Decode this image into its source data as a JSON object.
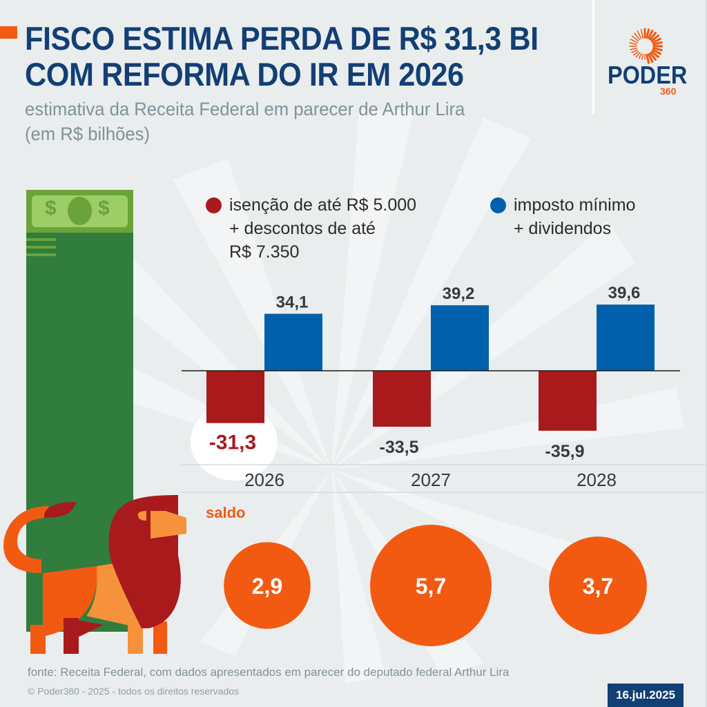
{
  "header": {
    "title_line1": "FISCO ESTIMA PERDA DE R$ 31,3 BI",
    "title_line2": "COM REFORMA DO IR EM 2026",
    "subtitle_line1": "estimativa da Receita Federal em parecer de Arthur Lira",
    "subtitle_line2": "(em R$ bilhões)"
  },
  "logo": {
    "word": "PODER",
    "number": "360",
    "icon": "sunburst-logo-icon"
  },
  "colors": {
    "navy": "#123f74",
    "orange": "#f25a12",
    "red_series": "#a81a1c",
    "blue_series": "#0160ab",
    "background": "#eaedee"
  },
  "legend": [
    {
      "label": "isenção de até R$ 5.000\n+ descontos de até\nR$ 7.350",
      "color": "#a81a1c"
    },
    {
      "label": "imposto mínimo\n+ dividendos",
      "color": "#0160ab"
    }
  ],
  "chart_data": {
    "type": "bar",
    "title": "FISCO ESTIMA PERDA DE R$ 31,3 BI COM REFORMA DO IR EM 2026",
    "subtitle": "estimativa da Receita Federal em parecer de Arthur Lira (em R$ bilhões)",
    "xlabel": "",
    "ylabel": "",
    "categories": [
      "2026",
      "2027",
      "2028"
    ],
    "series": [
      {
        "name": "isenção de até R$ 5.000 + descontos de até R$ 7.350",
        "values": [
          -31.3,
          -33.5,
          -35.9
        ],
        "labels": [
          "-31,3",
          "-33,5",
          "-35,9"
        ],
        "color": "#a81a1c"
      },
      {
        "name": "imposto mínimo + dividendos",
        "values": [
          34.1,
          39.2,
          39.6
        ],
        "labels": [
          "34,1",
          "39,2",
          "39,6"
        ],
        "color": "#0160ab"
      }
    ],
    "highlight": {
      "category": "2026",
      "series": 0
    },
    "ylim": [
      -40,
      40
    ],
    "grid": false,
    "legend_position": "top",
    "balance": {
      "label": "saldo",
      "values": [
        2.9,
        5.7,
        3.7
      ],
      "labels": [
        "2,9",
        "5,7",
        "3,7"
      ],
      "color": "#f25a12"
    }
  },
  "footer": {
    "source": "fonte: Receita Federal, com dados apresentados em parecer do deputado federal Arthur Lira",
    "copyright": "© Poder360 - 2025 - todos os direitos reservados",
    "date": "16.jul.2025"
  },
  "illustration": {
    "bill_icon": "money-bill-icon",
    "dollar_sign": "$",
    "lion_icon": "lion-illustration"
  }
}
